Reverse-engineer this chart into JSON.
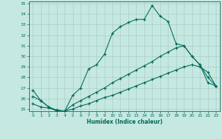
{
  "xlabel": "Humidex (Indice chaleur)",
  "xlim": [
    -0.5,
    23.5
  ],
  "ylim": [
    24.8,
    35.2
  ],
  "xticks": [
    0,
    1,
    2,
    3,
    4,
    5,
    6,
    7,
    8,
    9,
    10,
    11,
    12,
    13,
    14,
    15,
    16,
    17,
    18,
    19,
    20,
    21,
    22,
    23
  ],
  "yticks": [
    25,
    26,
    27,
    28,
    29,
    30,
    31,
    32,
    33,
    34,
    35
  ],
  "background_color": "#c5e8e0",
  "grid_color": "#a8cec8",
  "line_color": "#006858",
  "line1_x": [
    0,
    1,
    2,
    3,
    4,
    5,
    6,
    7,
    8,
    9,
    10,
    11,
    12,
    13,
    14,
    15,
    16,
    17,
    18,
    19,
    20,
    21,
    22,
    23
  ],
  "line1_y": [
    26.8,
    25.8,
    25.2,
    24.8,
    24.8,
    26.3,
    27.0,
    28.8,
    29.2,
    30.2,
    32.2,
    32.8,
    33.2,
    33.5,
    33.5,
    34.8,
    33.8,
    33.3,
    31.2,
    31.0,
    30.0,
    29.2,
    28.0,
    27.2
  ],
  "line2_x": [
    0,
    1,
    2,
    3,
    4,
    5,
    6,
    7,
    8,
    9,
    10,
    11,
    12,
    13,
    14,
    15,
    16,
    17,
    18,
    19,
    20,
    21,
    22,
    23
  ],
  "line2_y": [
    26.2,
    25.8,
    25.2,
    24.9,
    24.8,
    25.4,
    25.8,
    26.2,
    26.6,
    27.0,
    27.5,
    27.9,
    28.3,
    28.7,
    29.1,
    29.5,
    30.0,
    30.4,
    30.8,
    31.0,
    30.0,
    29.2,
    27.5,
    27.2
  ],
  "line3_x": [
    0,
    1,
    2,
    3,
    4,
    5,
    6,
    7,
    8,
    9,
    10,
    11,
    12,
    13,
    14,
    15,
    16,
    17,
    18,
    19,
    20,
    21,
    22,
    23
  ],
  "line3_y": [
    25.5,
    25.2,
    25.1,
    24.9,
    24.8,
    25.0,
    25.3,
    25.5,
    25.8,
    26.1,
    26.3,
    26.6,
    26.9,
    27.2,
    27.5,
    27.8,
    28.1,
    28.4,
    28.7,
    29.0,
    29.2,
    29.0,
    28.5,
    27.2
  ]
}
